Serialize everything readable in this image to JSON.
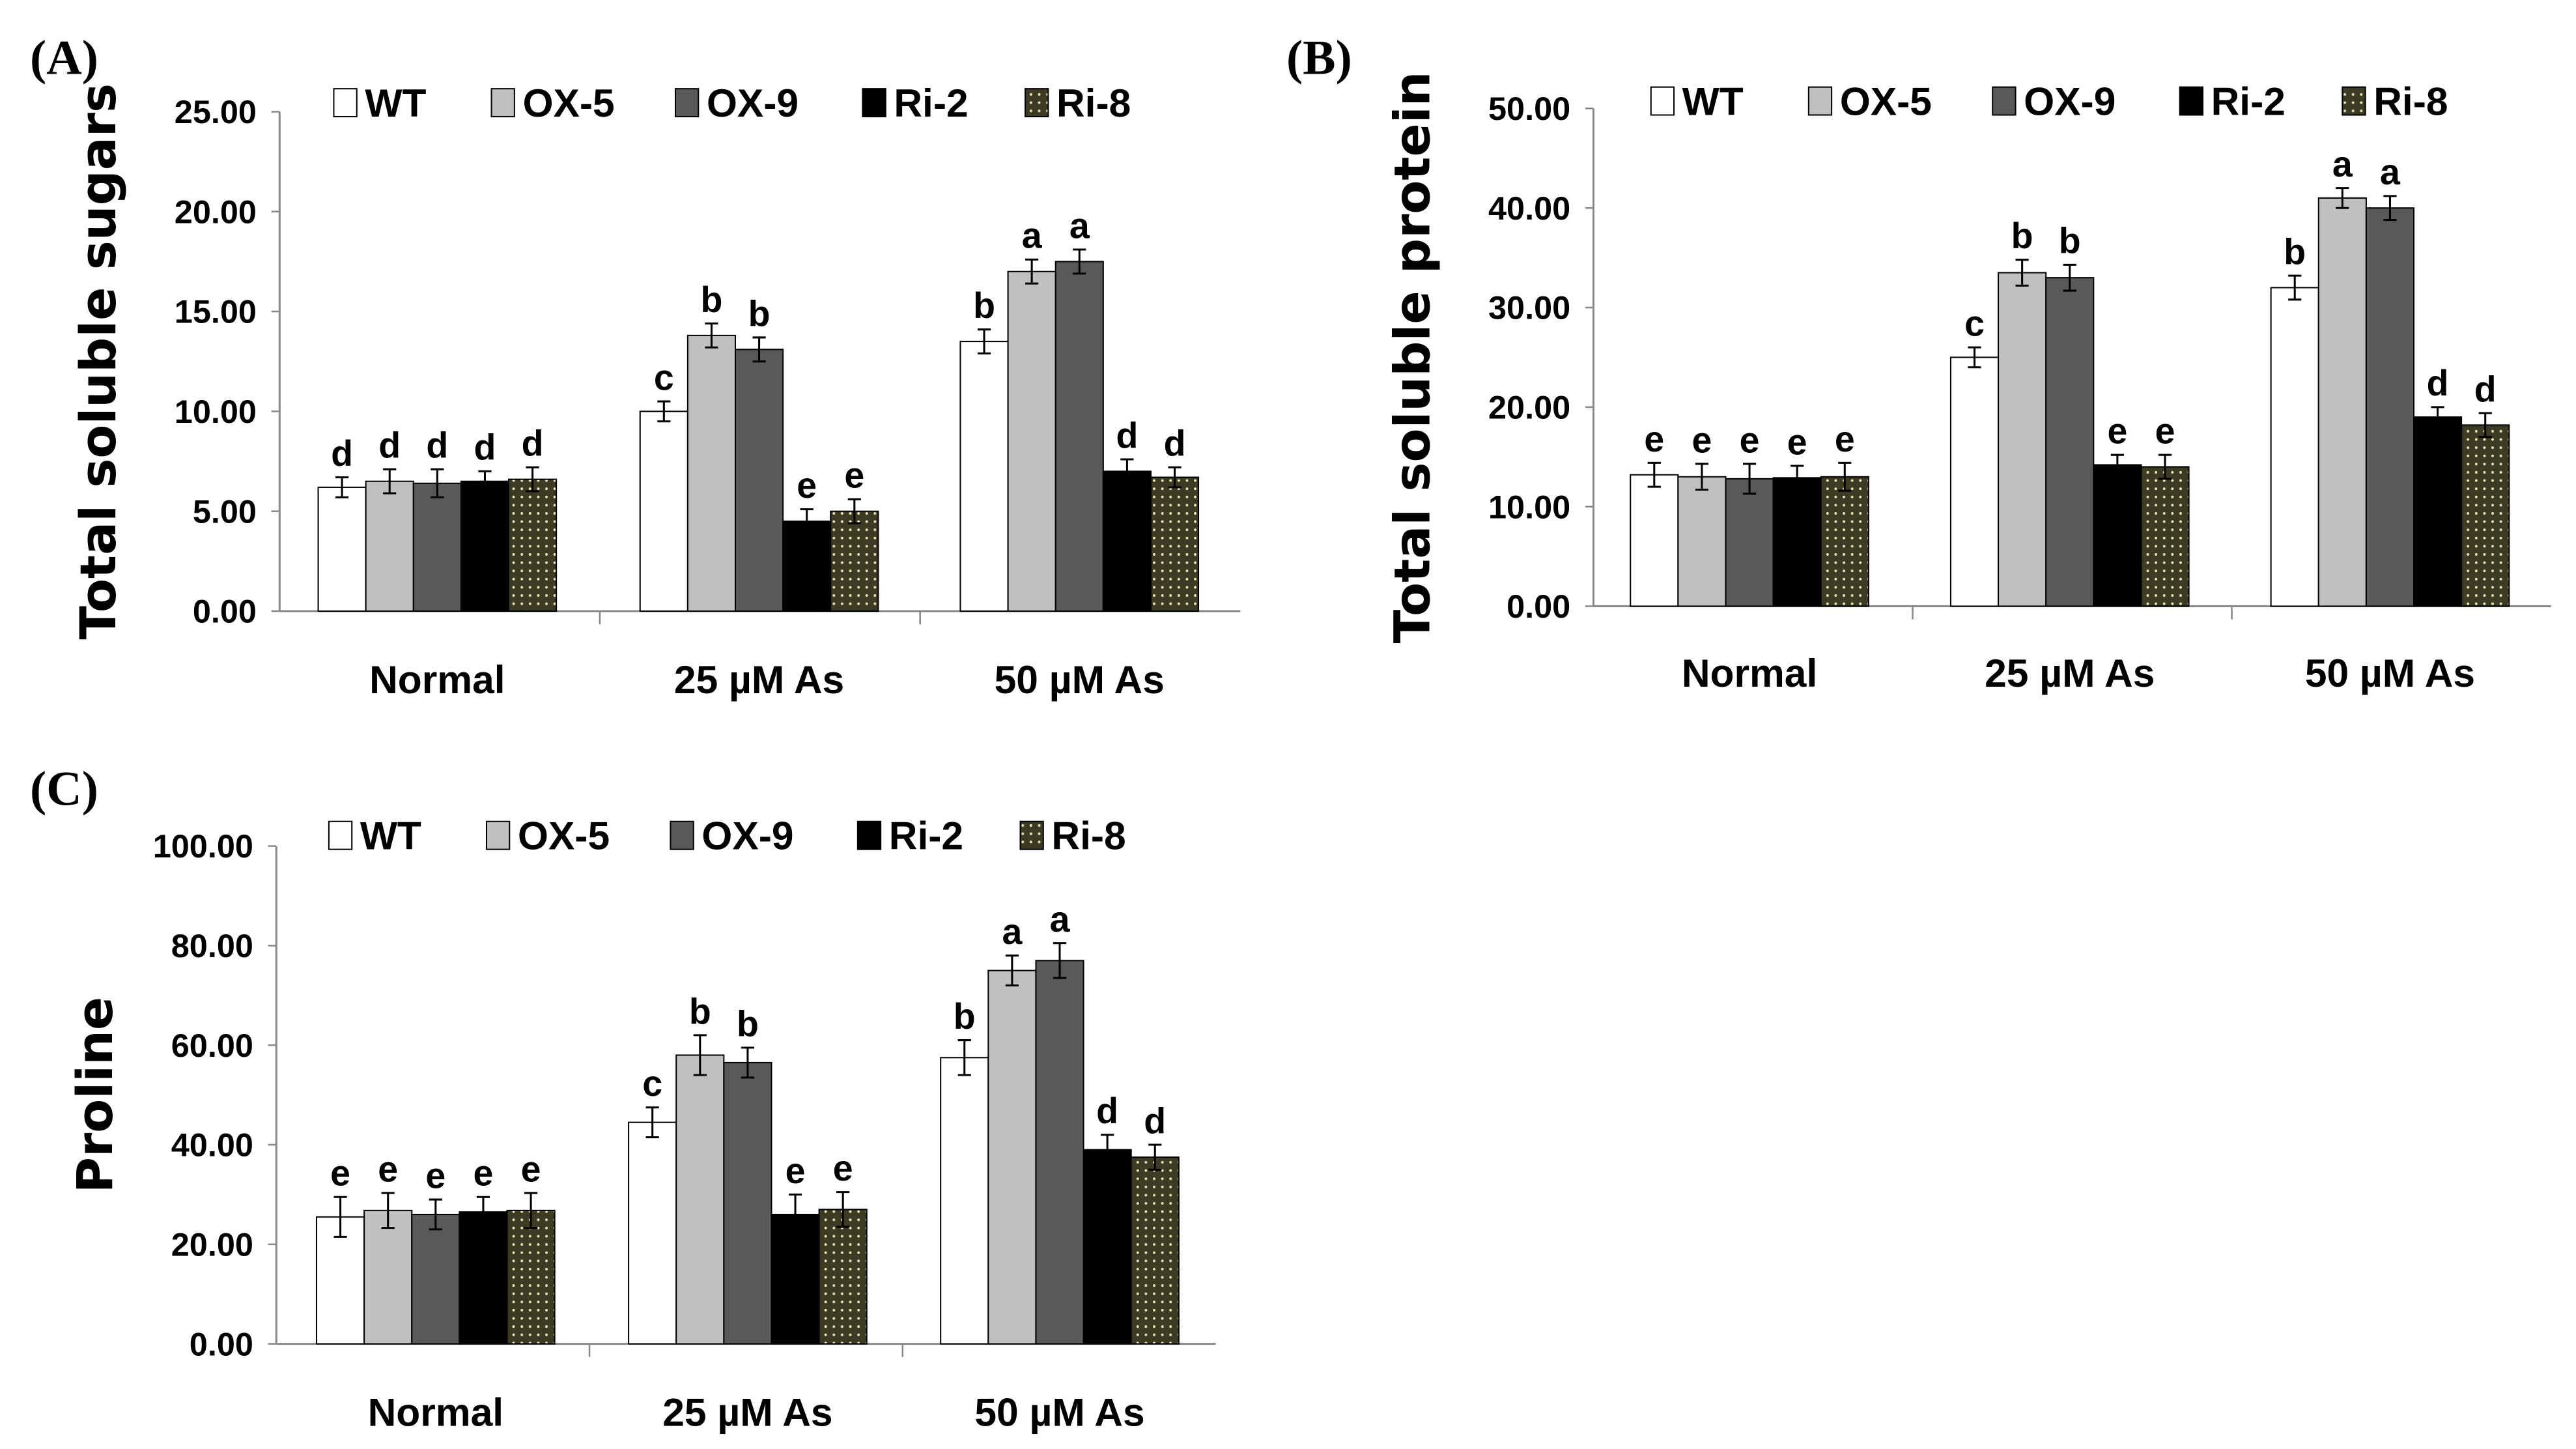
{
  "chart_data": [
    {
      "type": "bar",
      "panel_label": "(A)",
      "title": "",
      "xlabel": "",
      "ylabel": "Total soluble sugars",
      "ylim": [
        0,
        25
      ],
      "yticks": [
        "0.00",
        "5.00",
        "10.00",
        "15.00",
        "20.00",
        "25.00"
      ],
      "categories": [
        "Normal",
        "25 µM As",
        "50 µM As"
      ],
      "legend_position": "top",
      "series": [
        {
          "name": "WT",
          "values": [
            6.2,
            10.0,
            13.5
          ],
          "errors": [
            0.5,
            0.5,
            0.6
          ],
          "letters": [
            "d",
            "c",
            "b"
          ]
        },
        {
          "name": "OX-5",
          "values": [
            6.5,
            13.8,
            17.0
          ],
          "errors": [
            0.6,
            0.6,
            0.6
          ],
          "letters": [
            "d",
            "b",
            "a"
          ]
        },
        {
          "name": "OX-9",
          "values": [
            6.4,
            13.1,
            17.5
          ],
          "errors": [
            0.7,
            0.6,
            0.6
          ],
          "letters": [
            "d",
            "b",
            "a"
          ]
        },
        {
          "name": "Ri-2",
          "values": [
            6.5,
            4.5,
            7.0
          ],
          "errors": [
            0.5,
            0.6,
            0.6
          ],
          "letters": [
            "d",
            "e",
            "d"
          ]
        },
        {
          "name": "Ri-8",
          "values": [
            6.6,
            5.0,
            6.7
          ],
          "errors": [
            0.6,
            0.6,
            0.5
          ],
          "letters": [
            "d",
            "e",
            "d"
          ]
        }
      ]
    },
    {
      "type": "bar",
      "panel_label": "(B)",
      "title": "",
      "xlabel": "",
      "ylabel": "Total soluble protein",
      "ylim": [
        0,
        50
      ],
      "yticks": [
        "0.00",
        "10.00",
        "20.00",
        "30.00",
        "40.00",
        "50.00"
      ],
      "categories": [
        "Normal",
        "25 µM As",
        "50 µM As"
      ],
      "legend_position": "top",
      "series": [
        {
          "name": "WT",
          "values": [
            13.2,
            25.0,
            32.0
          ],
          "errors": [
            1.2,
            1.0,
            1.2
          ],
          "letters": [
            "e",
            "c",
            "b"
          ]
        },
        {
          "name": "OX-5",
          "values": [
            13.0,
            33.5,
            41.0
          ],
          "errors": [
            1.3,
            1.3,
            1.0
          ],
          "letters": [
            "e",
            "b",
            "a"
          ]
        },
        {
          "name": "OX-9",
          "values": [
            12.8,
            33.0,
            40.0
          ],
          "errors": [
            1.5,
            1.3,
            1.2
          ],
          "letters": [
            "e",
            "b",
            "a"
          ]
        },
        {
          "name": "Ri-2",
          "values": [
            12.9,
            14.2,
            19.0
          ],
          "errors": [
            1.2,
            1.0,
            1.0
          ],
          "letters": [
            "e",
            "e",
            "d"
          ]
        },
        {
          "name": "Ri-8",
          "values": [
            13.0,
            14.0,
            18.2
          ],
          "errors": [
            1.4,
            1.2,
            1.2
          ],
          "letters": [
            "e",
            "e",
            "d"
          ]
        }
      ]
    },
    {
      "type": "bar",
      "panel_label": "(C)",
      "title": "",
      "xlabel": "",
      "ylabel": "Proline",
      "ylim": [
        0,
        100
      ],
      "yticks": [
        "0.00",
        "20.00",
        "40.00",
        "60.00",
        "80.00",
        "100.00"
      ],
      "categories": [
        "Normal",
        "25 µM As",
        "50 µM As"
      ],
      "legend_position": "top",
      "series": [
        {
          "name": "WT",
          "values": [
            25.5,
            44.5,
            57.5
          ],
          "errors": [
            4.0,
            3.0,
            3.5
          ],
          "letters": [
            "e",
            "c",
            "b"
          ]
        },
        {
          "name": "OX-5",
          "values": [
            26.8,
            58.0,
            75.0
          ],
          "errors": [
            3.5,
            4.0,
            3.0
          ],
          "letters": [
            "e",
            "b",
            "a"
          ]
        },
        {
          "name": "OX-9",
          "values": [
            26.0,
            56.5,
            77.0
          ],
          "errors": [
            3.0,
            3.0,
            3.5
          ],
          "letters": [
            "e",
            "b",
            "a"
          ]
        },
        {
          "name": "Ri-2",
          "values": [
            26.5,
            26.0,
            39.0
          ],
          "errors": [
            3.0,
            4.0,
            3.0
          ],
          "letters": [
            "e",
            "e",
            "d"
          ]
        },
        {
          "name": "Ri-8",
          "values": [
            26.8,
            27.0,
            37.5
          ],
          "errors": [
            3.5,
            3.5,
            2.5
          ],
          "letters": [
            "e",
            "e",
            "d"
          ]
        }
      ]
    }
  ],
  "colors": {
    "WT": "#ffffff",
    "OX-5": "#c0c0c0",
    "OX-9": "#595959",
    "Ri-2": "#000000",
    "Ri-8": "#3d3b24"
  }
}
